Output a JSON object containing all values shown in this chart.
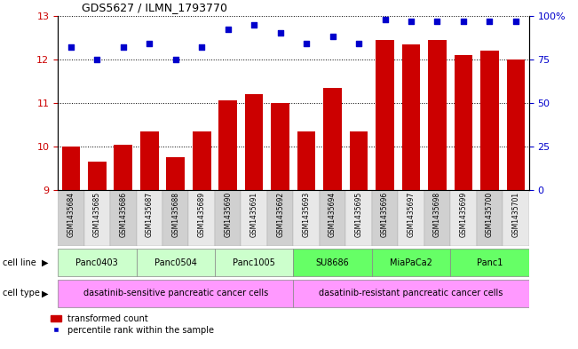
{
  "title": "GDS5627 / ILMN_1793770",
  "samples": [
    "GSM1435684",
    "GSM1435685",
    "GSM1435686",
    "GSM1435687",
    "GSM1435688",
    "GSM1435689",
    "GSM1435690",
    "GSM1435691",
    "GSM1435692",
    "GSM1435693",
    "GSM1435694",
    "GSM1435695",
    "GSM1435696",
    "GSM1435697",
    "GSM1435698",
    "GSM1435699",
    "GSM1435700",
    "GSM1435701"
  ],
  "bar_values": [
    10.0,
    9.65,
    10.05,
    10.35,
    9.75,
    10.35,
    11.05,
    11.2,
    11.0,
    10.35,
    11.35,
    10.35,
    12.45,
    12.35,
    12.45,
    12.1,
    12.2,
    12.0
  ],
  "percentile_values": [
    82,
    75,
    82,
    84,
    75,
    82,
    92,
    95,
    90,
    84,
    88,
    84,
    98,
    97,
    97,
    97,
    97,
    97
  ],
  "bar_color": "#cc0000",
  "dot_color": "#0000cc",
  "ylim": [
    9,
    13
  ],
  "yticks": [
    9,
    10,
    11,
    12,
    13
  ],
  "y2lim": [
    0,
    100
  ],
  "y2ticks": [
    0,
    25,
    50,
    75,
    100
  ],
  "y2labels": [
    "0",
    "25",
    "50",
    "75",
    "100%"
  ],
  "cell_lines": [
    {
      "label": "Panc0403",
      "start": 0,
      "end": 2,
      "color": "#ccffcc"
    },
    {
      "label": "Panc0504",
      "start": 3,
      "end": 5,
      "color": "#ccffcc"
    },
    {
      "label": "Panc1005",
      "start": 6,
      "end": 8,
      "color": "#ccffcc"
    },
    {
      "label": "SU8686",
      "start": 9,
      "end": 11,
      "color": "#66ff66"
    },
    {
      "label": "MiaPaCa2",
      "start": 12,
      "end": 14,
      "color": "#66ff66"
    },
    {
      "label": "Panc1",
      "start": 15,
      "end": 17,
      "color": "#66ff66"
    }
  ],
  "cell_type_groups": [
    {
      "label": "dasatinib-sensitive pancreatic cancer cells",
      "start": 0,
      "end": 8,
      "color": "#ff99ff"
    },
    {
      "label": "dasatinib-resistant pancreatic cancer cells",
      "start": 9,
      "end": 17,
      "color": "#ff99ff"
    }
  ],
  "sample_col_colors": [
    "#d0d0d0",
    "#e8e8e8"
  ],
  "legend_items": [
    {
      "color": "#cc0000",
      "label": "transformed count"
    },
    {
      "color": "#0000cc",
      "label": "percentile rank within the sample"
    }
  ],
  "xlabel_row1": "cell line",
  "xlabel_row2": "cell type",
  "bg_color": "#ffffff",
  "tick_label_color_left": "#cc0000",
  "tick_label_color_right": "#0000cc"
}
